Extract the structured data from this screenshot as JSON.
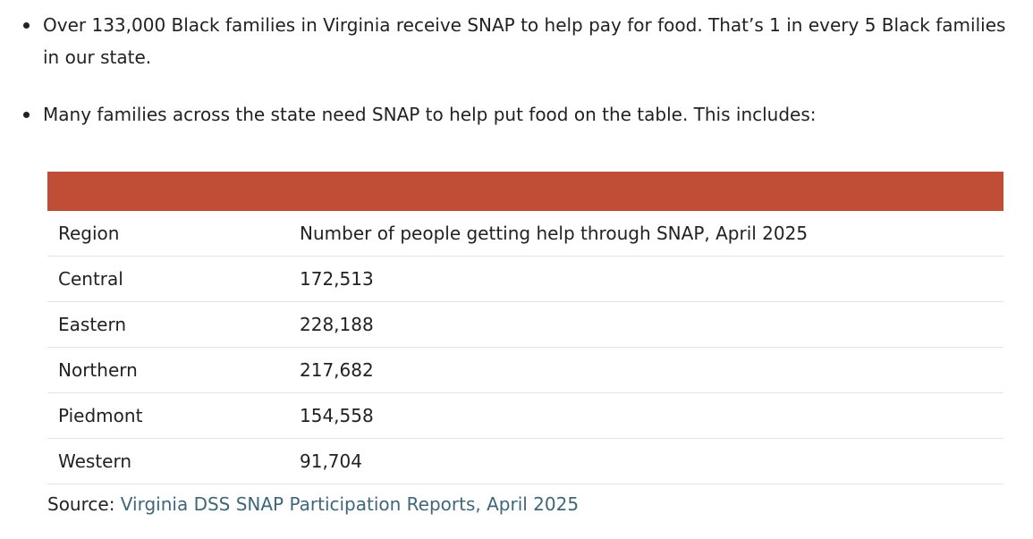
{
  "bullets": [
    "Over 133,000 Black families in Virginia receive SNAP to help pay for food. That’s 1 in every 5 Black families in our state.",
    "Many families across the state need SNAP to help put food on the table. This includes:"
  ],
  "table": {
    "header_color": "#c04e37",
    "columns": [
      "Region",
      "Number of people getting help through SNAP, April 2025"
    ],
    "rows": [
      [
        "Central",
        "172,513"
      ],
      [
        "Eastern",
        "228,188"
      ],
      [
        "Northern",
        "217,682"
      ],
      [
        "Piedmont",
        "154,558"
      ],
      [
        "Western",
        "91,704"
      ]
    ]
  },
  "source": {
    "label": "Source:",
    "link_text": "Virginia DSS SNAP Participation Reports, April 2025",
    "link_color": "#3f6679"
  }
}
